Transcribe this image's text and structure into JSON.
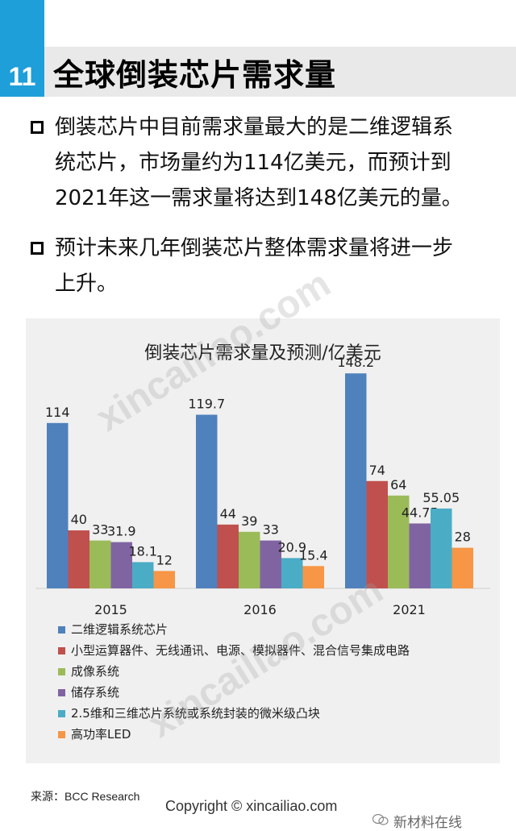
{
  "header": {
    "number": "11",
    "title": "全球倒装芯片需求量"
  },
  "bullets": [
    {
      "line1": "倒装芯片中目前需求量最大的是二维逻辑系",
      "line2": "统芯片，市场量约为114亿美元，而预计到",
      "line3": "2021年这一需求量将达到148亿美元的量。"
    },
    {
      "line1": "预计未来几年倒装芯片整体需求量将进一步",
      "line2": "上升。"
    }
  ],
  "chart_data": {
    "type": "bar",
    "title": "倒装芯片需求量及预测/亿美元",
    "categories": [
      "2015",
      "2016",
      "2021"
    ],
    "series": [
      {
        "name": "二维逻辑系统芯片",
        "color": "#4f81bd",
        "values": [
          114,
          119.7,
          148.2
        ],
        "labels": [
          "114",
          "119.7",
          "148.2"
        ]
      },
      {
        "name": "小型运算器件、无线通讯、电源、模拟器件、混合信号集成电路",
        "color": "#c0504d",
        "values": [
          40,
          44,
          74
        ],
        "labels": [
          "40",
          "44",
          "74"
        ]
      },
      {
        "name": "成像系统",
        "color": "#9bbb59",
        "values": [
          33,
          39,
          64
        ],
        "labels": [
          "33",
          "39",
          "64"
        ]
      },
      {
        "name": "储存系统",
        "color": "#8064a2",
        "values": [
          31.9,
          33,
          44.75
        ],
        "labels": [
          "31.9",
          "33",
          "44.75"
        ]
      },
      {
        "name": "2.5维和三维芯片系统或系统封装的微米级凸块",
        "color": "#4bacc6",
        "values": [
          18.1,
          20.9,
          55.05
        ],
        "labels": [
          "18.1",
          "20.9",
          "55.05"
        ]
      },
      {
        "name": "高功率LED",
        "color": "#f79646",
        "values": [
          12,
          15.4,
          28
        ],
        "labels": [
          "12",
          "15.4",
          "28"
        ]
      }
    ],
    "ylim": [
      0,
      160
    ],
    "legend": "bottom",
    "grid": false
  },
  "footer": {
    "source": "来源：BCC Research",
    "copyright": "Copyright © xincailiao.com",
    "brand": "新材料在线"
  },
  "watermark": "xincailiao.com"
}
